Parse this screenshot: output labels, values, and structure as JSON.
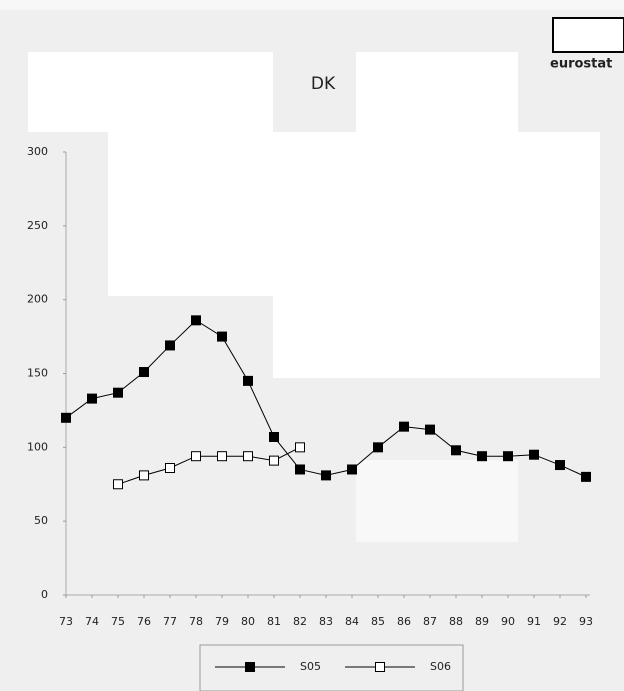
{
  "chart_data": {
    "type": "line",
    "title": "DK",
    "logo": "eurostat",
    "categories": [
      "73",
      "74",
      "75",
      "76",
      "77",
      "78",
      "79",
      "80",
      "81",
      "82",
      "83",
      "84",
      "85",
      "86",
      "87",
      "88",
      "89",
      "90",
      "91",
      "92",
      "93"
    ],
    "series": [
      {
        "name": "S05",
        "color": "#000000",
        "marker": "filled-square",
        "values": [
          120,
          133,
          137,
          151,
          169,
          186,
          175,
          145,
          107,
          85,
          81,
          85,
          100,
          114,
          112,
          98,
          94,
          94,
          95,
          88,
          80
        ]
      },
      {
        "name": "S06",
        "color": "#000000",
        "marker": "open-square",
        "values": [
          null,
          null,
          75,
          81,
          86,
          94,
          94,
          94,
          91,
          100,
          null,
          null,
          null,
          null,
          null,
          null,
          null,
          null,
          null,
          null,
          null
        ]
      }
    ],
    "ylim": [
      0,
      300
    ],
    "yticks": [
      0,
      50,
      100,
      150,
      200,
      250,
      300
    ],
    "grid": false,
    "legend": "bottom"
  }
}
